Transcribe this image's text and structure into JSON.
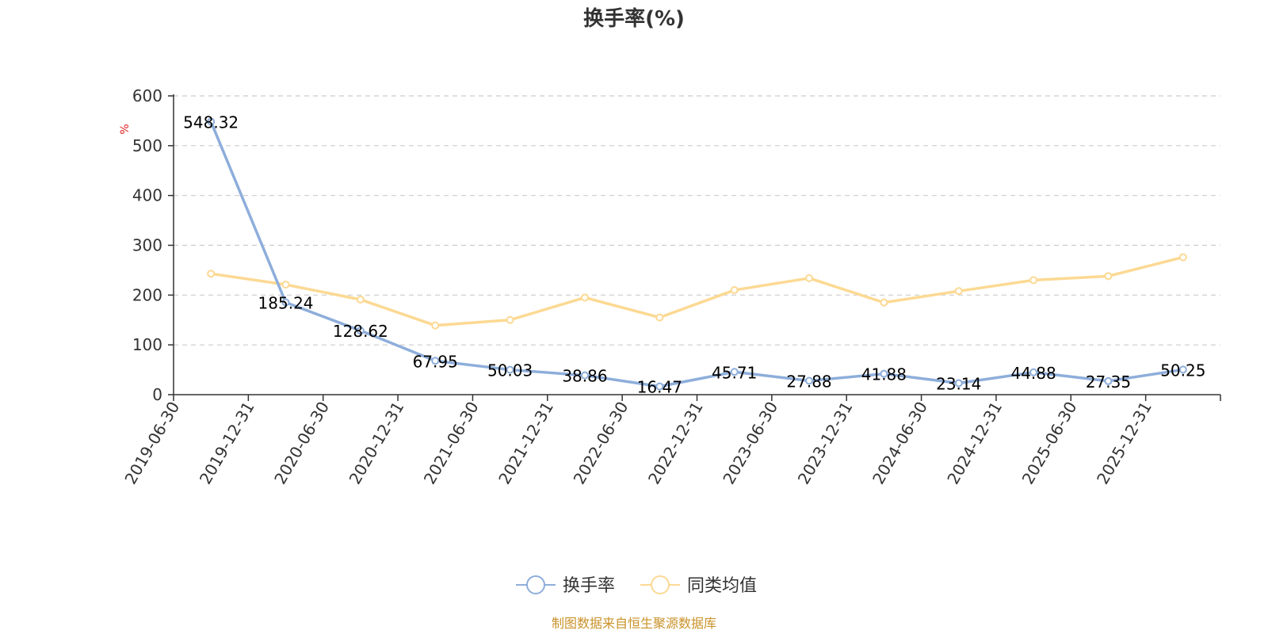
{
  "chart_data": {
    "type": "line",
    "title": "换手率(%)",
    "ylabel": "%",
    "ylim": [
      0,
      600
    ],
    "yticks": [
      0,
      100,
      200,
      300,
      400,
      500,
      600
    ],
    "grid": true,
    "legend_position": "bottom-center",
    "categories": [
      "2019-06-30",
      "2019-12-31",
      "2020-06-30",
      "2020-12-31",
      "2021-06-30",
      "2021-12-31",
      "2022-06-30",
      "2022-12-31",
      "2023-06-30",
      "2023-12-31",
      "2024-06-30",
      "2024-12-31",
      "2025-06-30",
      "2025-12-31"
    ],
    "series": [
      {
        "name": "换手率",
        "color": "#8eaedb",
        "values": [
          548.32,
          185.24,
          128.62,
          67.95,
          50.03,
          38.86,
          16.47,
          45.71,
          27.88,
          41.88,
          23.14,
          44.88,
          27.35,
          50.25
        ],
        "labels": [
          "548.32",
          "185.24",
          "128.62",
          "67.95",
          "50.03",
          "38.86",
          "16.47",
          "45.71",
          "27.88",
          "41.88",
          "23.14",
          "44.88",
          "27.35",
          "50.25"
        ]
      },
      {
        "name": "同类均值",
        "color": "#fcd993",
        "values": [
          243,
          221,
          191,
          139,
          150,
          195,
          155,
          210,
          234,
          185,
          208,
          230,
          238,
          276
        ]
      }
    ],
    "source": "制图数据来自恒生聚源数据库"
  }
}
